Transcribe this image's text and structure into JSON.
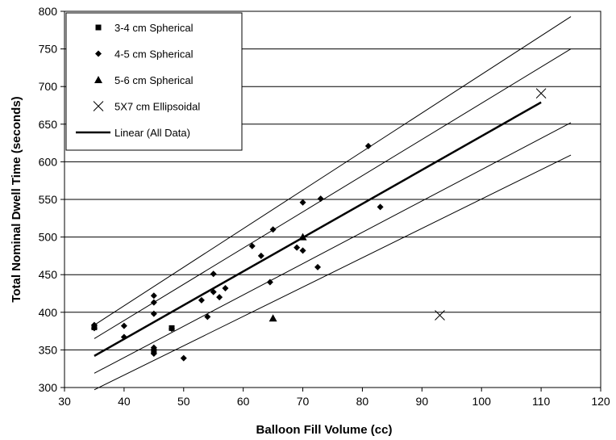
{
  "chart_data": {
    "type": "scatter",
    "xlabel": "Balloon Fill Volume (cc)",
    "ylabel": "Total Nominal Dwell Time (seconds)",
    "xlim": [
      30,
      120
    ],
    "ylim": [
      300,
      800
    ],
    "xticks": [
      "30",
      "40",
      "50",
      "60",
      "70",
      "80",
      "90",
      "100",
      "110",
      "120"
    ],
    "yticks": [
      "300",
      "350",
      "400",
      "450",
      "500",
      "550",
      "600",
      "650",
      "700",
      "750",
      "800"
    ],
    "grid": "horizontal",
    "legend_position": "top-left",
    "series": [
      {
        "name": "3-4 cm Spherical",
        "marker": "square",
        "points": [
          [
            35,
            380
          ],
          [
            48,
            379
          ],
          [
            45,
            348
          ]
        ]
      },
      {
        "name": "4-5 cm Spherical",
        "marker": "diamond",
        "points": [
          [
            35,
            383
          ],
          [
            35,
            379
          ],
          [
            40,
            382
          ],
          [
            40,
            367
          ],
          [
            45,
            422
          ],
          [
            45,
            413
          ],
          [
            45,
            398
          ],
          [
            45,
            353
          ],
          [
            45,
            345
          ],
          [
            48,
            378
          ],
          [
            50,
            339
          ],
          [
            53,
            416
          ],
          [
            54,
            394
          ],
          [
            55,
            451
          ],
          [
            55,
            427
          ],
          [
            56,
            420
          ],
          [
            57,
            432
          ],
          [
            61.5,
            488
          ],
          [
            63,
            475
          ],
          [
            64.5,
            440
          ],
          [
            65,
            510
          ],
          [
            69,
            486
          ],
          [
            70,
            546
          ],
          [
            70,
            482
          ],
          [
            72.5,
            460
          ],
          [
            73,
            551
          ],
          [
            81,
            621
          ],
          [
            83,
            540
          ]
        ]
      },
      {
        "name": "5-6 cm Spherical",
        "marker": "triangle",
        "points": [
          [
            70,
            500
          ],
          [
            65,
            392
          ]
        ]
      },
      {
        "name": "5X7 cm Ellipsoidal",
        "marker": "x",
        "points": [
          [
            110,
            691
          ],
          [
            93,
            396
          ]
        ]
      }
    ],
    "fit": {
      "name": "Linear (All Data)",
      "x": [
        35,
        110
      ],
      "y": [
        342,
        679
      ]
    },
    "bands": [
      {
        "x": [
          35,
          115
        ],
        "y": [
          383,
          793
        ]
      },
      {
        "x": [
          35,
          115
        ],
        "y": [
          365,
          750
        ]
      },
      {
        "x": [
          35,
          115
        ],
        "y": [
          319,
          652
        ]
      },
      {
        "x": [
          35,
          115
        ],
        "y": [
          297,
          609
        ]
      }
    ]
  }
}
